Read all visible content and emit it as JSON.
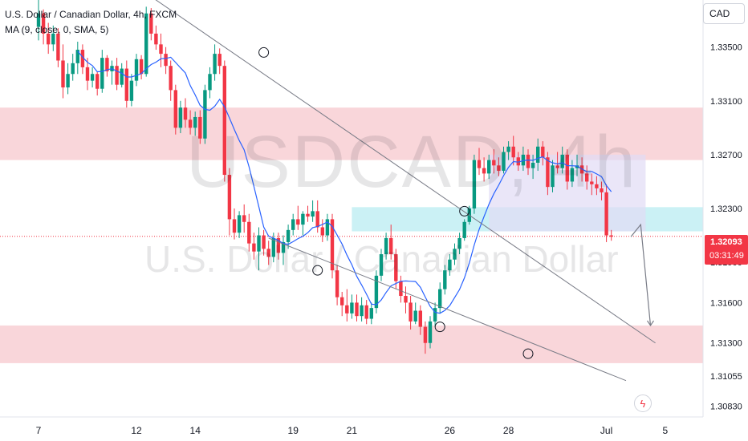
{
  "header": {
    "title": "U.S. Dollar / Canadian Dollar, 4h, FXCM",
    "indicator": "MA (9, close, 0, SMA, 5)"
  },
  "watermark": {
    "symbol": "USDCAD, 4h",
    "description": "U.S. Dollar / Canadian Dollar"
  },
  "currency_button": "CAD",
  "price_tag": {
    "price": "1.32093",
    "countdown": "03:31:49"
  },
  "colors": {
    "up": "#089981",
    "down": "#f23645",
    "ma": "#2962ff",
    "supply_zone": "#f7c5cb",
    "demand_zone": "#b9ecf2",
    "consolidation": "#e1dcf5",
    "trendline": "#787b86"
  },
  "icons": {
    "alert": "lightning-icon"
  },
  "chart_data": {
    "type": "candlestick",
    "title": "U.S. Dollar / Canadian Dollar, 4h, FXCM",
    "y_ticks": [
      "1.33500",
      "1.33100",
      "1.32700",
      "1.32300",
      "1.31900",
      "1.31600",
      "1.31300",
      "1.31055",
      "1.30830"
    ],
    "y_tick_values": [
      1.335,
      1.331,
      1.327,
      1.323,
      1.319,
      1.316,
      1.313,
      1.31055,
      1.3083
    ],
    "x_ticks": [
      "7",
      "12",
      "14",
      "19",
      "21",
      "26",
      "28",
      "Jul",
      "5"
    ],
    "x_tick_index": [
      0,
      20,
      32,
      52,
      64,
      84,
      96,
      116,
      128
    ],
    "ylim": [
      1.3075,
      1.3385
    ],
    "last_price": 1.32093,
    "zones": [
      {
        "name": "supply",
        "low": 1.3266,
        "high": 1.3305
      },
      {
        "name": "demand-upper",
        "low": 1.3213,
        "high": 1.3231
      },
      {
        "name": "demand-lower",
        "low": 1.3115,
        "high": 1.3143
      }
    ],
    "candles": [
      [
        1.3365,
        1.3385,
        1.3355,
        1.3375
      ],
      [
        1.3375,
        1.3378,
        1.3352,
        1.336
      ],
      [
        1.336,
        1.3368,
        1.3345,
        1.3352
      ],
      [
        1.3352,
        1.3366,
        1.3347,
        1.336
      ],
      [
        1.336,
        1.3364,
        1.3335,
        1.334
      ],
      [
        1.334,
        1.3352,
        1.3312,
        1.332
      ],
      [
        1.332,
        1.3338,
        1.3315,
        1.333
      ],
      [
        1.333,
        1.3345,
        1.3325,
        1.3338
      ],
      [
        1.3338,
        1.3354,
        1.333,
        1.3348
      ],
      [
        1.3348,
        1.3352,
        1.333,
        1.3335
      ],
      [
        1.3335,
        1.3342,
        1.3318,
        1.3325
      ],
      [
        1.3325,
        1.3335,
        1.332,
        1.333
      ],
      [
        1.333,
        1.3332,
        1.3314,
        1.3319
      ],
      [
        1.3319,
        1.3348,
        1.3316,
        1.3342
      ],
      [
        1.3342,
        1.3344,
        1.3328,
        1.3332
      ],
      [
        1.3332,
        1.334,
        1.3322,
        1.3336
      ],
      [
        1.3336,
        1.3342,
        1.3318,
        1.3322
      ],
      [
        1.3322,
        1.3338,
        1.332,
        1.3334
      ],
      [
        1.3334,
        1.334,
        1.3305,
        1.331
      ],
      [
        1.331,
        1.333,
        1.3306,
        1.3325
      ],
      [
        1.3325,
        1.3345,
        1.3321,
        1.3341
      ],
      [
        1.3341,
        1.3344,
        1.3326,
        1.333
      ],
      [
        1.333,
        1.338,
        1.3328,
        1.3375
      ],
      [
        1.3375,
        1.3379,
        1.3355,
        1.336
      ],
      [
        1.336,
        1.3366,
        1.3348,
        1.3352
      ],
      [
        1.3352,
        1.336,
        1.3335,
        1.3345
      ],
      [
        1.3345,
        1.335,
        1.333,
        1.3336
      ],
      [
        1.3336,
        1.334,
        1.331,
        1.3318
      ],
      [
        1.3318,
        1.3322,
        1.3285,
        1.329
      ],
      [
        1.329,
        1.331,
        1.3286,
        1.3305
      ],
      [
        1.3305,
        1.3312,
        1.329,
        1.3296
      ],
      [
        1.3296,
        1.3303,
        1.3285,
        1.329
      ],
      [
        1.329,
        1.3302,
        1.3284,
        1.3298
      ],
      [
        1.3298,
        1.3303,
        1.3278,
        1.3282
      ],
      [
        1.3282,
        1.3322,
        1.3278,
        1.3318
      ],
      [
        1.3318,
        1.3335,
        1.3312,
        1.333
      ],
      [
        1.333,
        1.3352,
        1.3325,
        1.3345
      ],
      [
        1.3345,
        1.3349,
        1.333,
        1.3336
      ],
      [
        1.3336,
        1.334,
        1.325,
        1.3255
      ],
      [
        1.3255,
        1.326,
        1.321,
        1.3222
      ],
      [
        1.3222,
        1.323,
        1.3207,
        1.3212
      ],
      [
        1.3212,
        1.3228,
        1.3208,
        1.3225
      ],
      [
        1.3225,
        1.3233,
        1.3212,
        1.322
      ],
      [
        1.322,
        1.3226,
        1.3198,
        1.3204
      ],
      [
        1.3204,
        1.3212,
        1.3192,
        1.3198
      ],
      [
        1.3198,
        1.3216,
        1.3184,
        1.321
      ],
      [
        1.321,
        1.3214,
        1.3195,
        1.32
      ],
      [
        1.32,
        1.3206,
        1.3188,
        1.3194
      ],
      [
        1.3194,
        1.3212,
        1.319,
        1.3208
      ],
      [
        1.3208,
        1.3212,
        1.3192,
        1.3197
      ],
      [
        1.3197,
        1.321,
        1.3188,
        1.3205
      ],
      [
        1.3205,
        1.3218,
        1.32,
        1.3214
      ],
      [
        1.3214,
        1.3226,
        1.321,
        1.3222
      ],
      [
        1.3222,
        1.3232,
        1.3214,
        1.3218
      ],
      [
        1.3218,
        1.3228,
        1.321,
        1.3226
      ],
      [
        1.3226,
        1.3232,
        1.322,
        1.3224
      ],
      [
        1.3224,
        1.3236,
        1.322,
        1.3228
      ],
      [
        1.3228,
        1.3236,
        1.3212,
        1.3216
      ],
      [
        1.3216,
        1.3222,
        1.3205,
        1.321
      ],
      [
        1.321,
        1.3226,
        1.3206,
        1.3222
      ],
      [
        1.3222,
        1.3226,
        1.3178,
        1.3184
      ],
      [
        1.3184,
        1.3188,
        1.3158,
        1.3164
      ],
      [
        1.3164,
        1.3168,
        1.315,
        1.3158
      ],
      [
        1.3158,
        1.317,
        1.3146,
        1.3152
      ],
      [
        1.3152,
        1.3166,
        1.3148,
        1.316
      ],
      [
        1.316,
        1.3166,
        1.3146,
        1.315
      ],
      [
        1.315,
        1.3164,
        1.3146,
        1.3158
      ],
      [
        1.3158,
        1.3162,
        1.3144,
        1.3148
      ],
      [
        1.3148,
        1.316,
        1.3144,
        1.3156
      ],
      [
        1.3156,
        1.3184,
        1.3152,
        1.318
      ],
      [
        1.318,
        1.32,
        1.3176,
        1.3196
      ],
      [
        1.3196,
        1.3212,
        1.3192,
        1.3208
      ],
      [
        1.3208,
        1.3218,
        1.3192,
        1.3196
      ],
      [
        1.3196,
        1.32,
        1.317,
        1.3176
      ],
      [
        1.3176,
        1.318,
        1.316,
        1.3165
      ],
      [
        1.3165,
        1.3172,
        1.3152,
        1.316
      ],
      [
        1.316,
        1.3165,
        1.314,
        1.3146
      ],
      [
        1.3146,
        1.316,
        1.3144,
        1.3154
      ],
      [
        1.3154,
        1.3158,
        1.3136,
        1.3142
      ],
      [
        1.3142,
        1.3146,
        1.3122,
        1.313
      ],
      [
        1.313,
        1.315,
        1.3126,
        1.3146
      ],
      [
        1.3146,
        1.316,
        1.3142,
        1.3156
      ],
      [
        1.3156,
        1.3175,
        1.3152,
        1.317
      ],
      [
        1.317,
        1.3188,
        1.3166,
        1.3184
      ],
      [
        1.3184,
        1.3196,
        1.318,
        1.3192
      ],
      [
        1.3192,
        1.3204,
        1.3188,
        1.32
      ],
      [
        1.32,
        1.3212,
        1.3196,
        1.3208
      ],
      [
        1.3208,
        1.3222,
        1.3206,
        1.322
      ],
      [
        1.322,
        1.3232,
        1.3218,
        1.323
      ],
      [
        1.323,
        1.327,
        1.3226,
        1.3266
      ],
      [
        1.3266,
        1.3275,
        1.3255,
        1.326
      ],
      [
        1.326,
        1.3268,
        1.325,
        1.3256
      ],
      [
        1.3256,
        1.327,
        1.3252,
        1.3266
      ],
      [
        1.3266,
        1.3274,
        1.3256,
        1.3262
      ],
      [
        1.3262,
        1.3268,
        1.3254,
        1.3258
      ],
      [
        1.3258,
        1.3276,
        1.3256,
        1.3272
      ],
      [
        1.3272,
        1.328,
        1.3266,
        1.3276
      ],
      [
        1.3276,
        1.3284,
        1.3262,
        1.3268
      ],
      [
        1.3268,
        1.3272,
        1.3258,
        1.3262
      ],
      [
        1.3262,
        1.3276,
        1.3258,
        1.327
      ],
      [
        1.327,
        1.3274,
        1.3255,
        1.326
      ],
      [
        1.326,
        1.327,
        1.3252,
        1.3264
      ],
      [
        1.3264,
        1.3282,
        1.3258,
        1.3276
      ],
      [
        1.3276,
        1.328,
        1.3262,
        1.3268
      ],
      [
        1.3268,
        1.3272,
        1.324,
        1.3246
      ],
      [
        1.3246,
        1.3266,
        1.3242,
        1.3262
      ],
      [
        1.3262,
        1.3272,
        1.3256,
        1.326
      ],
      [
        1.326,
        1.3276,
        1.3256,
        1.327
      ],
      [
        1.327,
        1.3274,
        1.3244,
        1.325
      ],
      [
        1.325,
        1.3266,
        1.3246,
        1.326
      ],
      [
        1.326,
        1.327,
        1.3254,
        1.3262
      ],
      [
        1.3262,
        1.3268,
        1.325,
        1.3256
      ],
      [
        1.3256,
        1.3262,
        1.3244,
        1.325
      ],
      [
        1.325,
        1.3256,
        1.324,
        1.3248
      ],
      [
        1.3248,
        1.3254,
        1.324,
        1.3245
      ],
      [
        1.3245,
        1.325,
        1.3236,
        1.3242
      ],
      [
        1.3242,
        1.3248,
        1.3205,
        1.321
      ],
      [
        1.321,
        1.3214,
        1.3206,
        1.3209
      ]
    ],
    "trendlines": [
      {
        "name": "upper-channel",
        "from": {
          "i": 20,
          "p": 1.3395
        },
        "to": {
          "i": 126,
          "p": 1.313
        }
      },
      {
        "name": "lower-channel",
        "from": {
          "i": 47,
          "p": 1.3208
        },
        "to": {
          "i": 120,
          "p": 1.3102
        }
      }
    ],
    "swing_circles": [
      {
        "i": 46,
        "p": 1.3346
      },
      {
        "i": 57,
        "p": 1.3184
      },
      {
        "i": 82,
        "p": 1.3142
      },
      {
        "i": 87,
        "p": 1.3228
      },
      {
        "i": 100,
        "p": 1.3122
      }
    ],
    "projection": [
      {
        "i": 121,
        "p": 1.3209
      },
      {
        "i": 123,
        "p": 1.3218
      },
      {
        "i": 125,
        "p": 1.3143
      }
    ]
  }
}
